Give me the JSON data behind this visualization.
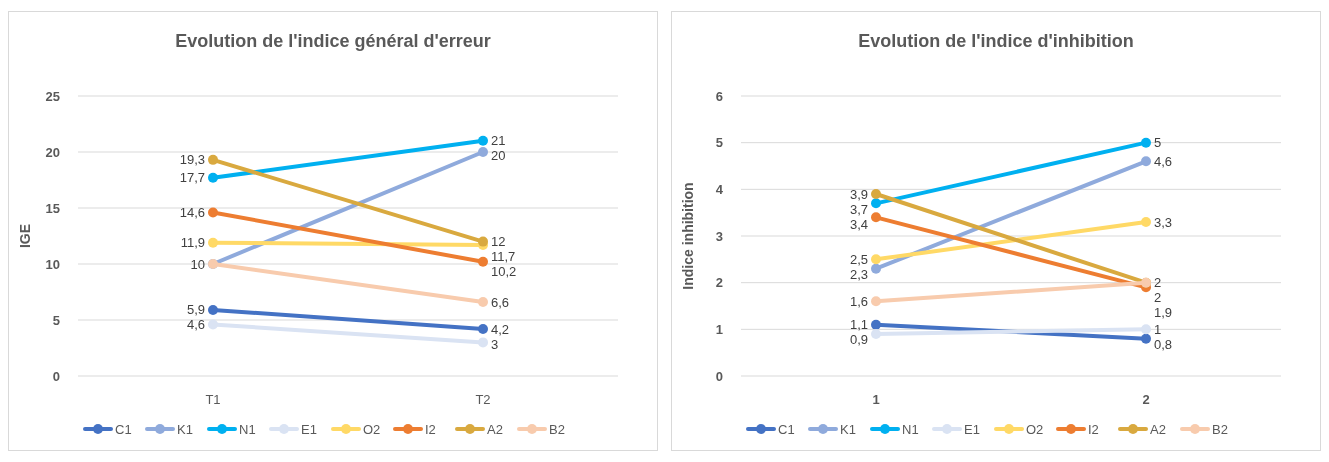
{
  "chart_data": [
    {
      "type": "line",
      "title": "Evolution de l'indice général d'erreur",
      "ylabel": "IGE",
      "categories": [
        "T1",
        "T2"
      ],
      "ylim": [
        0,
        25
      ],
      "yticks": [
        0,
        5,
        10,
        15,
        20,
        25
      ],
      "grid": "y",
      "legend": "bottom",
      "marker": "circle",
      "line_style": "solid",
      "series": [
        {
          "name": "C1",
          "color": "#4472c4",
          "values": [
            5.9,
            4.2
          ],
          "value_labels": [
            "5,9",
            "4,2"
          ]
        },
        {
          "name": "K1",
          "color": "#8faadc",
          "values": [
            10,
            20
          ],
          "value_labels": [
            null,
            "20"
          ]
        },
        {
          "name": "N1",
          "color": "#00b0f0",
          "values": [
            17.7,
            21
          ],
          "value_labels": [
            "17,7",
            "21"
          ]
        },
        {
          "name": "E1",
          "color": "#dae3f3",
          "values": [
            4.6,
            3
          ],
          "value_labels": [
            "4,6",
            "3"
          ]
        },
        {
          "name": "O2",
          "color": "#ffd966",
          "values": [
            11.9,
            11.7
          ],
          "value_labels": [
            "11,9",
            "11,7"
          ]
        },
        {
          "name": "I2",
          "color": "#ed7d31",
          "values": [
            14.6,
            10.2
          ],
          "value_labels": [
            "14,6",
            "10,2"
          ]
        },
        {
          "name": "A2",
          "color": "#d9a93f",
          "values": [
            19.3,
            12
          ],
          "value_labels": [
            "19,3",
            "12"
          ]
        },
        {
          "name": "B2",
          "color": "#f8cbad",
          "values": [
            10,
            6.6
          ],
          "value_labels": [
            "10",
            "6,6"
          ]
        }
      ]
    },
    {
      "type": "line",
      "title": "Evolution de l'indice d'inhibition",
      "ylabel": "Indice inhibition",
      "categories": [
        "1",
        "2"
      ],
      "ylim": [
        0,
        6
      ],
      "yticks": [
        0,
        1,
        2,
        3,
        4,
        5,
        6
      ],
      "grid": "y",
      "legend": "bottom",
      "marker": "circle",
      "line_style": "solid",
      "series": [
        {
          "name": "C1",
          "color": "#4472c4",
          "values": [
            1.1,
            0.8
          ],
          "value_labels": [
            "1,1",
            "0,8"
          ]
        },
        {
          "name": "K1",
          "color": "#8faadc",
          "values": [
            2.3,
            4.6
          ],
          "value_labels": [
            "2,3",
            "4,6"
          ]
        },
        {
          "name": "N1",
          "color": "#00b0f0",
          "values": [
            3.7,
            5
          ],
          "value_labels": [
            "3,7",
            "5"
          ]
        },
        {
          "name": "E1",
          "color": "#dae3f3",
          "values": [
            0.9,
            1
          ],
          "value_labels": [
            "0,9",
            "1"
          ]
        },
        {
          "name": "O2",
          "color": "#ffd966",
          "values": [
            2.5,
            3.3
          ],
          "value_labels": [
            "2,5",
            "3,3"
          ]
        },
        {
          "name": "I2",
          "color": "#ed7d31",
          "values": [
            3.4,
            1.9
          ],
          "value_labels": [
            "3,4",
            "1,9"
          ]
        },
        {
          "name": "A2",
          "color": "#d9a93f",
          "values": [
            3.9,
            2
          ],
          "value_labels": [
            "3,9",
            "2"
          ]
        },
        {
          "name": "B2",
          "color": "#f8cbad",
          "values": [
            1.6,
            2
          ],
          "value_labels": [
            "1,6",
            "2"
          ]
        }
      ]
    }
  ]
}
